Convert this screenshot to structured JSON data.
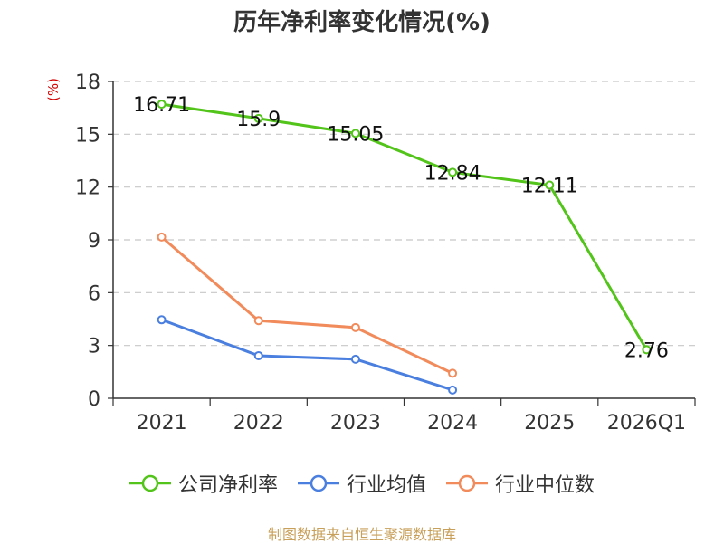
{
  "chart_data": {
    "type": "line",
    "title": "历年净利率变化情况(%)",
    "ylabel": "(%)",
    "xlabel": "",
    "categories": [
      "2021",
      "2022",
      "2023",
      "2024",
      "2025",
      "2026Q1"
    ],
    "ylim": [
      0,
      18
    ],
    "yticks": [
      0,
      3,
      6,
      9,
      12,
      15,
      18
    ],
    "grid": true,
    "legend_position": "bottom",
    "series": [
      {
        "name": "公司净利率",
        "color": "#52c41a",
        "show_labels": true,
        "values": [
          16.71,
          15.9,
          15.05,
          12.84,
          12.11,
          2.76
        ]
      },
      {
        "name": "行业均值",
        "color": "#4a7fe0",
        "show_labels": false,
        "values": [
          4.46,
          2.42,
          2.22,
          0.47,
          null,
          null
        ]
      },
      {
        "name": "行业中位数",
        "color": "#f28b5b",
        "show_labels": false,
        "values": [
          9.16,
          4.41,
          4.02,
          1.42,
          null,
          null
        ]
      }
    ]
  },
  "source_text": "制图数据来自恒生聚源数据库"
}
